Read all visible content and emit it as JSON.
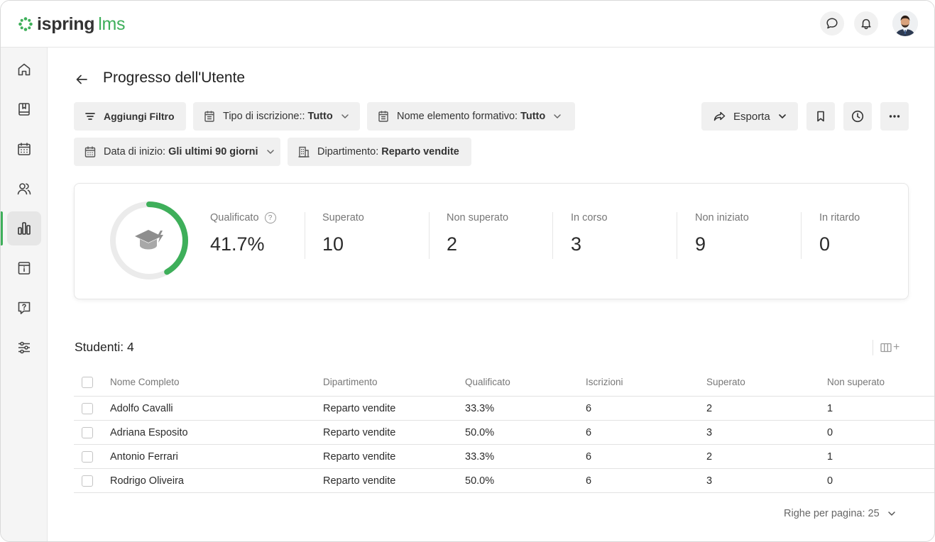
{
  "app": {
    "logo_primary": "ispring",
    "logo_secondary": "lms",
    "accent_color": "#3eaf5a"
  },
  "header": {
    "icons": [
      "chat-icon",
      "bell-icon",
      "user-avatar"
    ]
  },
  "sidebar": {
    "items": [
      {
        "name": "home-icon"
      },
      {
        "name": "book-icon"
      },
      {
        "name": "calendar-icon"
      },
      {
        "name": "users-icon"
      },
      {
        "name": "reports-icon",
        "active": true
      },
      {
        "name": "info-archive-icon"
      },
      {
        "name": "quiz-icon"
      },
      {
        "name": "settings-sliders-icon"
      }
    ]
  },
  "page": {
    "title": "Progresso dell'Utente"
  },
  "filters": {
    "add_filter": "Aggiungi Filtro",
    "enrollment_type_label": "Tipo di iscrizione:: ",
    "enrollment_type_value": "Tutto",
    "learning_item_label": "Nome elemento formativo: ",
    "learning_item_value": "Tutto",
    "start_date_label": "Data di inizio: ",
    "start_date_value": "Gli ultimi 90 giorni",
    "department_label": "Dipartimento: ",
    "department_value": "Reparto vendite"
  },
  "toolbar": {
    "export_label": "Esporta"
  },
  "stats": {
    "progress_fraction": 0.417,
    "qualified_label": "Qualificato",
    "qualified_value": "41.7%",
    "passed_label": "Superato",
    "passed_value": "10",
    "failed_label": "Non superato",
    "failed_value": "2",
    "in_progress_label": "In corso",
    "in_progress_value": "3",
    "not_started_label": "Non iniziato",
    "not_started_value": "9",
    "overdue_label": "In ritardo",
    "overdue_value": "0"
  },
  "table": {
    "count_label": "Studenti: 4",
    "headers": [
      "Nome Completo",
      "Dipartimento",
      "Qualificato",
      "Iscrizioni",
      "Superato",
      "Non superato"
    ],
    "rows": [
      [
        "Adolfo Cavalli",
        "Reparto vendite",
        "33.3%",
        "6",
        "2",
        "1"
      ],
      [
        "Adriana Esposito",
        "Reparto vendite",
        "50.0%",
        "6",
        "3",
        "0"
      ],
      [
        "Antonio Ferrari",
        "Reparto vendite",
        "33.3%",
        "6",
        "2",
        "1"
      ],
      [
        "Rodrigo Oliveira",
        "Reparto vendite",
        "50.0%",
        "6",
        "3",
        "0"
      ]
    ],
    "rows_per_page": "Righe per pagina: 25"
  }
}
